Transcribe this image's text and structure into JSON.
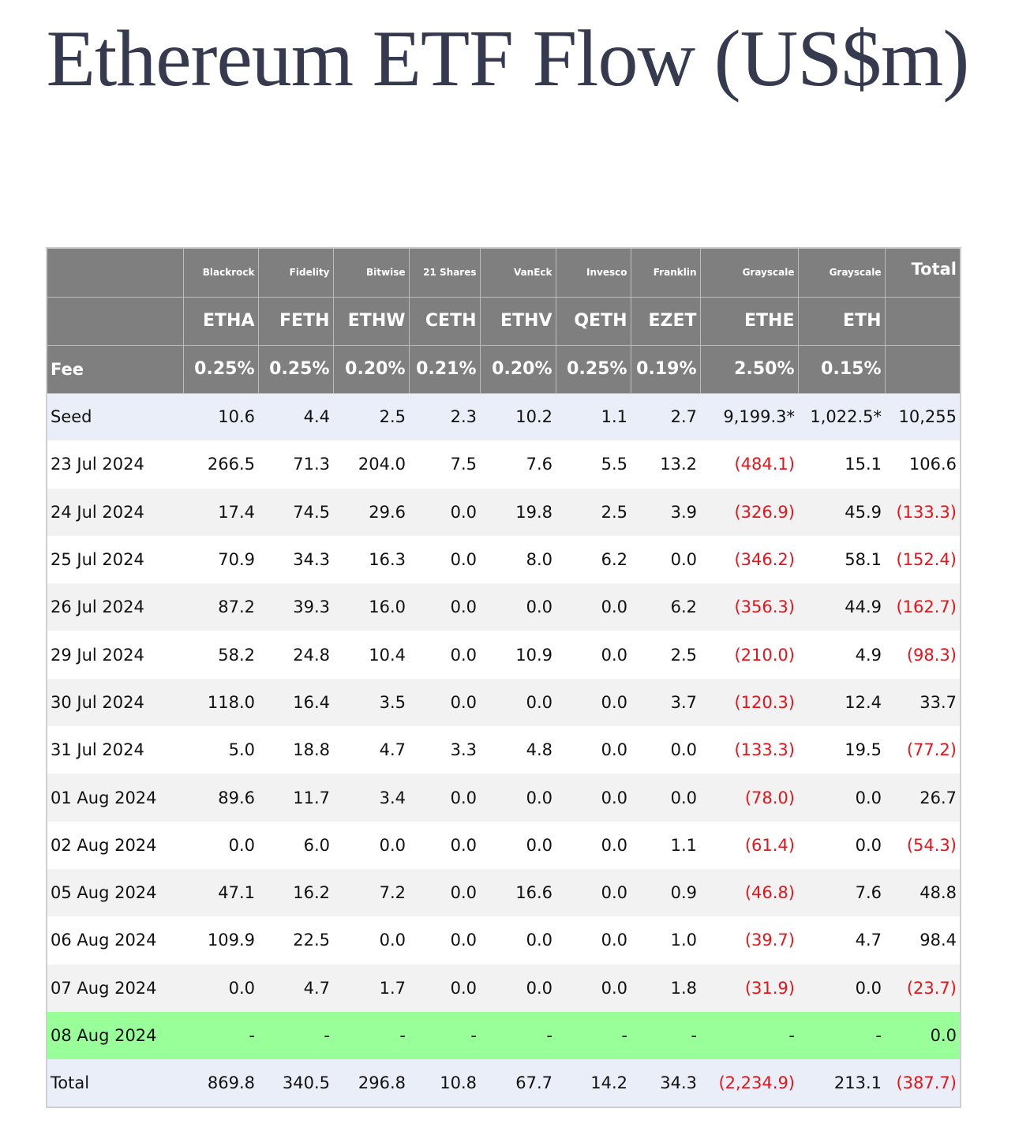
{
  "title": "Ethereum ETF Flow (US$m)",
  "issuers": [
    "Blackrock",
    "Fidelity",
    "Bitwise",
    "21 Shares",
    "VanEck",
    "Invesco",
    "Franklin",
    "Grayscale",
    "Grayscale"
  ],
  "total_header": "Total",
  "tickers": [
    "ETHA",
    "FETH",
    "ETHW",
    "CETH",
    "ETHV",
    "QETH",
    "EZET",
    "ETHE",
    "ETH"
  ],
  "fee_label": "Fee",
  "fees": [
    "0.25%",
    "0.25%",
    "0.20%",
    "0.21%",
    "0.20%",
    "0.25%",
    "0.19%",
    "2.50%",
    "0.15%"
  ],
  "rows": [
    {
      "label": "Seed",
      "values": [
        "10.6",
        "4.4",
        "2.5",
        "2.3",
        "10.2",
        "1.1",
        "2.7",
        "9,199.3*",
        "1,022.5*",
        "10,255"
      ]
    },
    {
      "label": "23 Jul 2024",
      "values": [
        "266.5",
        "71.3",
        "204.0",
        "7.5",
        "7.6",
        "5.5",
        "13.2",
        "(484.1)",
        "15.1",
        "106.6"
      ]
    },
    {
      "label": "24 Jul 2024",
      "values": [
        "17.4",
        "74.5",
        "29.6",
        "0.0",
        "19.8",
        "2.5",
        "3.9",
        "(326.9)",
        "45.9",
        "(133.3)"
      ]
    },
    {
      "label": "25 Jul 2024",
      "values": [
        "70.9",
        "34.3",
        "16.3",
        "0.0",
        "8.0",
        "6.2",
        "0.0",
        "(346.2)",
        "58.1",
        "(152.4)"
      ]
    },
    {
      "label": "26 Jul 2024",
      "values": [
        "87.2",
        "39.3",
        "16.0",
        "0.0",
        "0.0",
        "0.0",
        "6.2",
        "(356.3)",
        "44.9",
        "(162.7)"
      ]
    },
    {
      "label": "29 Jul 2024",
      "values": [
        "58.2",
        "24.8",
        "10.4",
        "0.0",
        "10.9",
        "0.0",
        "2.5",
        "(210.0)",
        "4.9",
        "(98.3)"
      ]
    },
    {
      "label": "30 Jul 2024",
      "values": [
        "118.0",
        "16.4",
        "3.5",
        "0.0",
        "0.0",
        "0.0",
        "3.7",
        "(120.3)",
        "12.4",
        "33.7"
      ]
    },
    {
      "label": "31 Jul 2024",
      "values": [
        "5.0",
        "18.8",
        "4.7",
        "3.3",
        "4.8",
        "0.0",
        "0.0",
        "(133.3)",
        "19.5",
        "(77.2)"
      ]
    },
    {
      "label": "01 Aug 2024",
      "values": [
        "89.6",
        "11.7",
        "3.4",
        "0.0",
        "0.0",
        "0.0",
        "0.0",
        "(78.0)",
        "0.0",
        "26.7"
      ]
    },
    {
      "label": "02 Aug 2024",
      "values": [
        "0.0",
        "6.0",
        "0.0",
        "0.0",
        "0.0",
        "0.0",
        "1.1",
        "(61.4)",
        "0.0",
        "(54.3)"
      ]
    },
    {
      "label": "05 Aug 2024",
      "values": [
        "47.1",
        "16.2",
        "7.2",
        "0.0",
        "16.6",
        "0.0",
        "0.9",
        "(46.8)",
        "7.6",
        "48.8"
      ]
    },
    {
      "label": "06 Aug 2024",
      "values": [
        "109.9",
        "22.5",
        "0.0",
        "0.0",
        "0.0",
        "0.0",
        "1.0",
        "(39.7)",
        "4.7",
        "98.4"
      ]
    },
    {
      "label": "07 Aug 2024",
      "values": [
        "0.0",
        "4.7",
        "1.7",
        "0.0",
        "0.0",
        "0.0",
        "1.8",
        "(31.9)",
        "0.0",
        "(23.7)"
      ]
    },
    {
      "label": "08 Aug 2024",
      "values": [
        "-",
        "-",
        "-",
        "-",
        "-",
        "-",
        "-",
        "-",
        "-",
        "0.0"
      ]
    },
    {
      "label": "Total",
      "values": [
        "869.8",
        "340.5",
        "296.8",
        "10.8",
        "67.7",
        "14.2",
        "34.3",
        "(2,234.9)",
        "213.1",
        "(387.7)"
      ]
    }
  ],
  "colors": {
    "header_bg": "#7f7f7f",
    "seed_total_bg": "#eaeef8",
    "stripe_bg": "#f2f2f2",
    "today_bg": "#99ff99",
    "negative_text": "#e8141a",
    "title_text": "#353a4f"
  }
}
